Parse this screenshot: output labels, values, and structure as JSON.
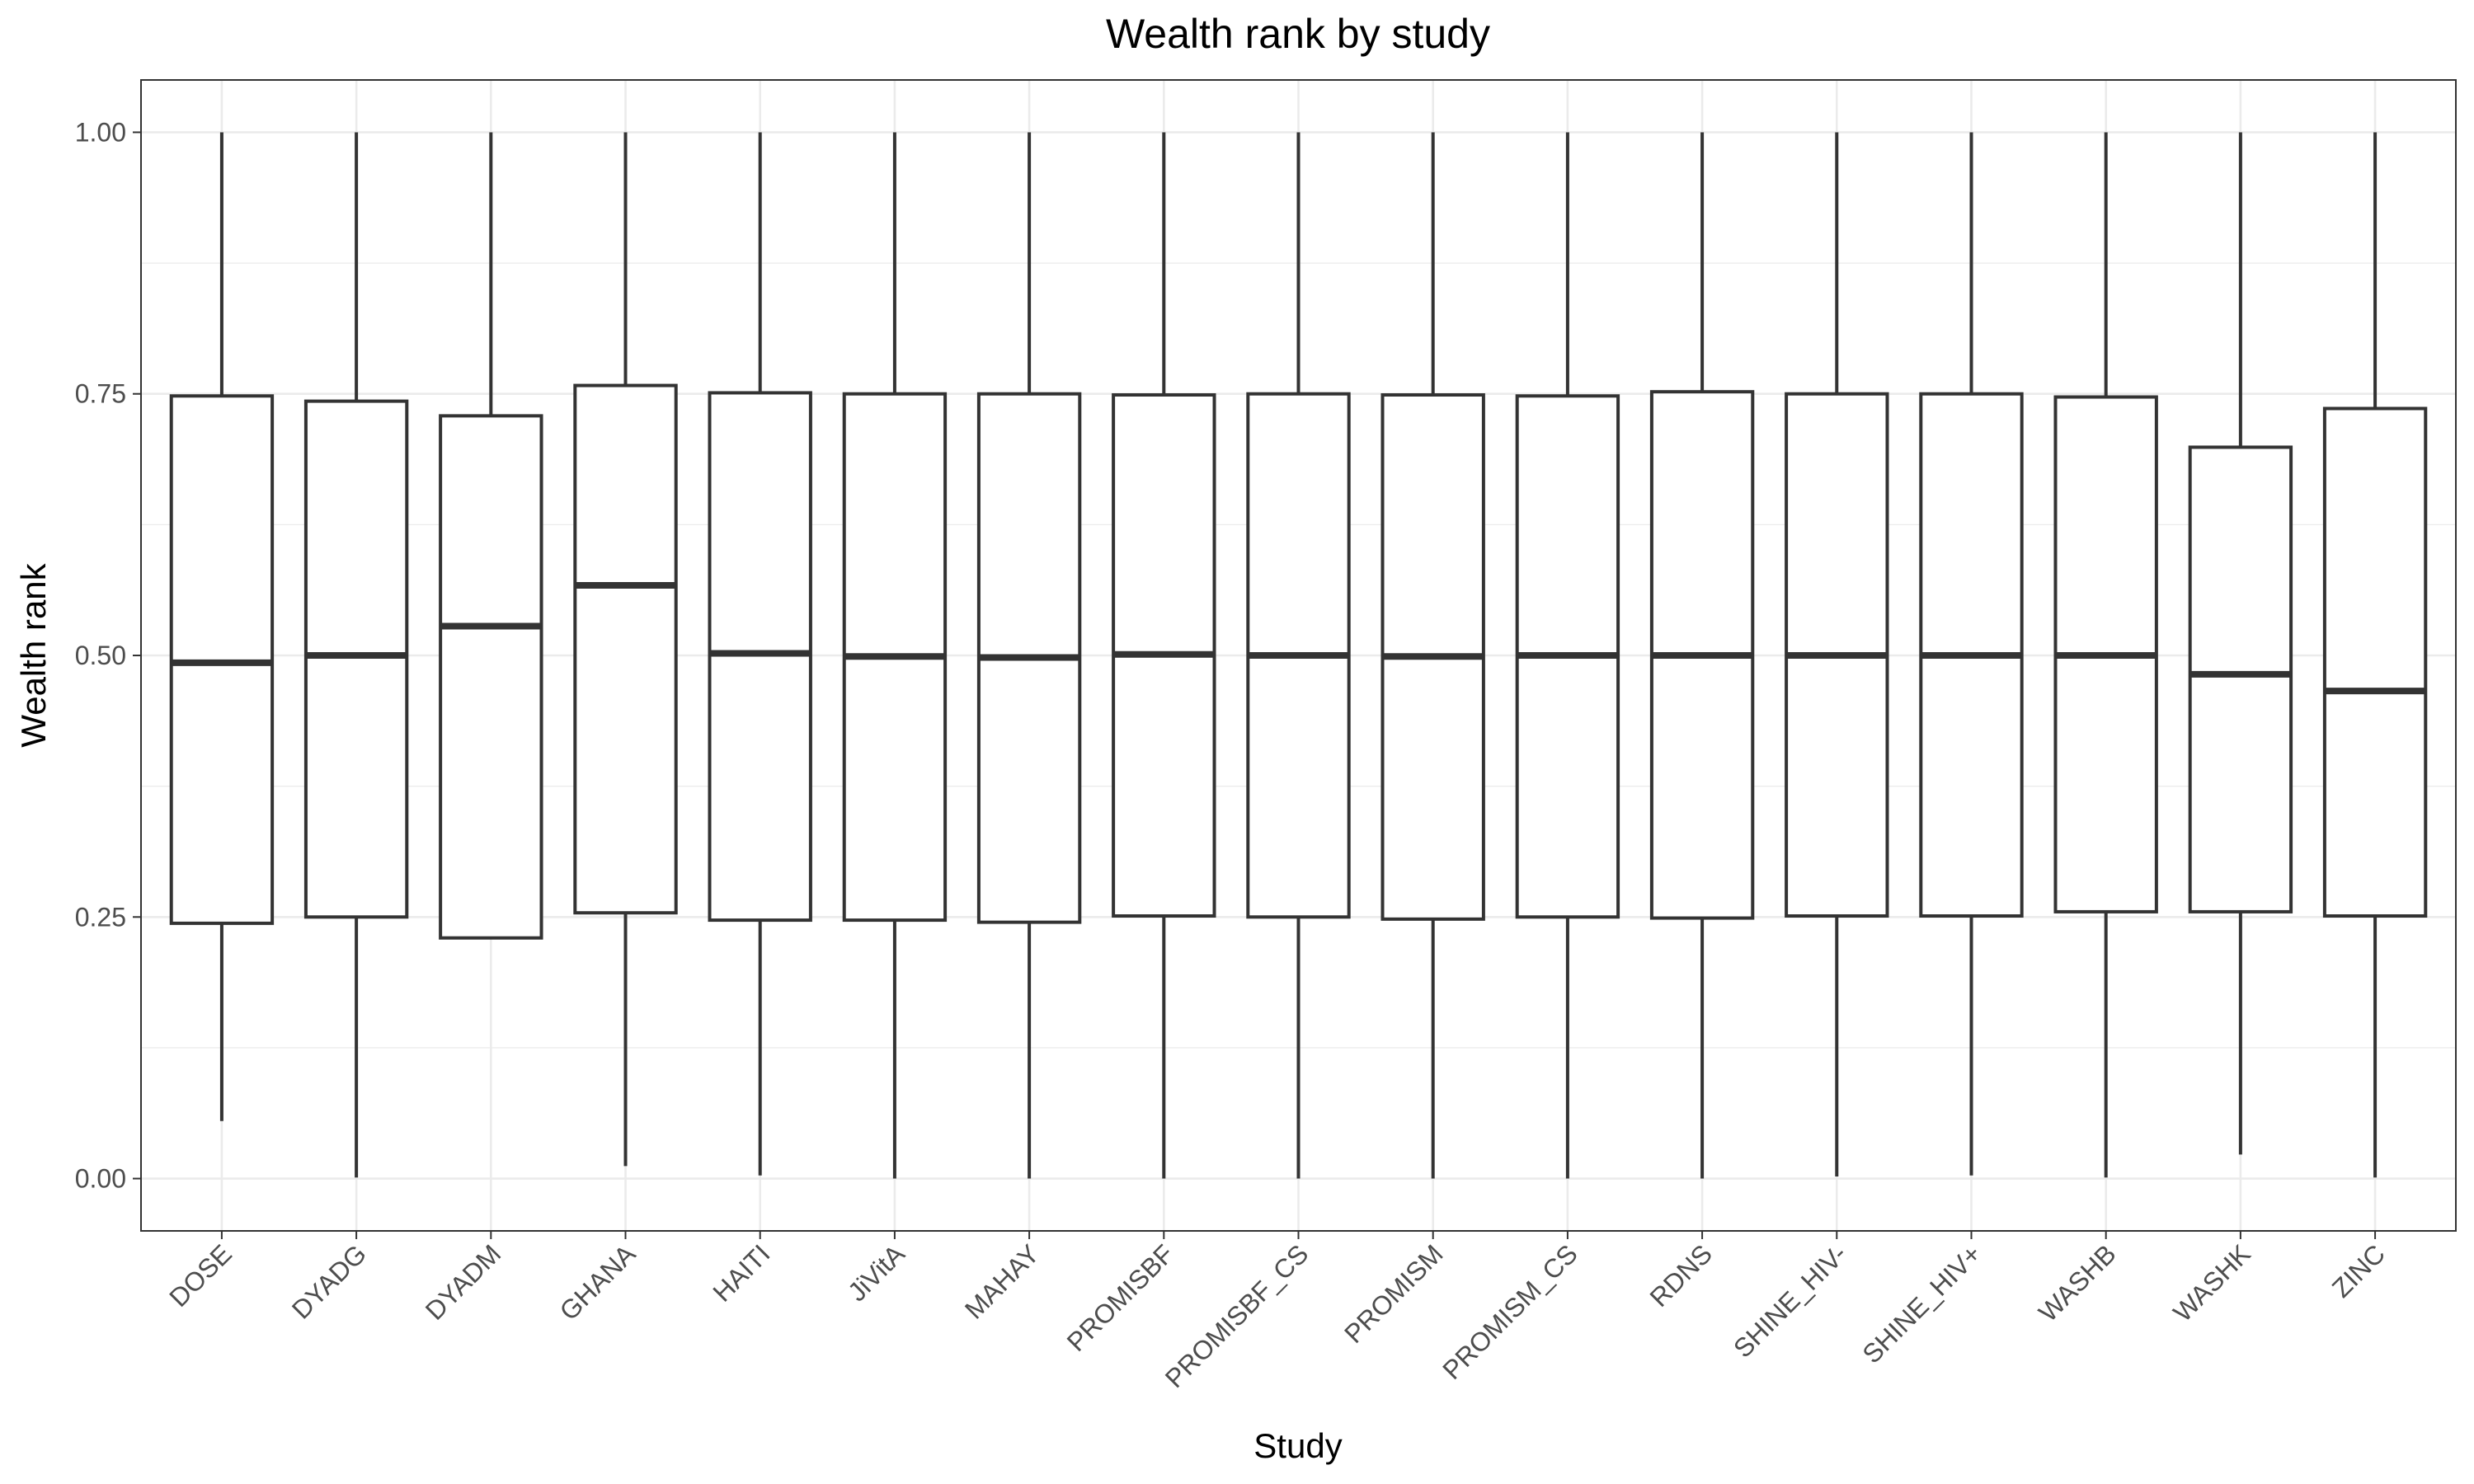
{
  "chart_data": {
    "type": "boxplot",
    "title": "Wealth rank by study",
    "xlabel": "Study",
    "ylabel": "Wealth rank",
    "ylim": [
      -0.05,
      1.05
    ],
    "yticks": [
      0.0,
      0.25,
      0.5,
      0.75,
      1.0
    ],
    "ytick_labels": [
      "0.00",
      "0.25",
      "0.50",
      "0.75",
      "1.00"
    ],
    "grid": true,
    "theme": "bw",
    "box_stroke_color": "#333333",
    "grid_color": "#ebebeb",
    "categories": [
      "DOSE",
      "DYADG",
      "DYADM",
      "GHANA",
      "HAITI",
      "JiVitA",
      "MAHAY",
      "PROMISBF",
      "PROMISBF_CS",
      "PROMISM",
      "PROMISM_CS",
      "RDNS",
      "SHINE_HIV-",
      "SHINE_HIV+",
      "WASHB",
      "WASHK",
      "ZINC"
    ],
    "boxes": [
      {
        "study": "DOSE",
        "min": 0.055,
        "q1": 0.244,
        "median": 0.493,
        "q3": 0.748,
        "max": 1.0
      },
      {
        "study": "DYADG",
        "min": 0.001,
        "q1": 0.25,
        "median": 0.5,
        "q3": 0.743,
        "max": 1.0
      },
      {
        "study": "DYADM",
        "min": 0.23,
        "q1": 0.23,
        "median": 0.528,
        "q3": 0.729,
        "max": 1.0
      },
      {
        "study": "GHANA",
        "min": 0.012,
        "q1": 0.254,
        "median": 0.567,
        "q3": 0.758,
        "max": 1.0
      },
      {
        "study": "HAITI",
        "min": 0.003,
        "q1": 0.247,
        "median": 0.502,
        "q3": 0.751,
        "max": 1.0
      },
      {
        "study": "JiVitA",
        "min": 0.0,
        "q1": 0.247,
        "median": 0.499,
        "q3": 0.75,
        "max": 1.0
      },
      {
        "study": "MAHAY",
        "min": 0.0,
        "q1": 0.245,
        "median": 0.498,
        "q3": 0.75,
        "max": 1.0
      },
      {
        "study": "PROMISBF",
        "min": 0.0,
        "q1": 0.251,
        "median": 0.501,
        "q3": 0.749,
        "max": 1.0
      },
      {
        "study": "PROMISBF_CS",
        "min": 0.0,
        "q1": 0.25,
        "median": 0.5,
        "q3": 0.75,
        "max": 1.0
      },
      {
        "study": "PROMISM",
        "min": 0.0,
        "q1": 0.248,
        "median": 0.499,
        "q3": 0.749,
        "max": 1.0
      },
      {
        "study": "PROMISM_CS",
        "min": 0.0,
        "q1": 0.25,
        "median": 0.5,
        "q3": 0.748,
        "max": 1.0
      },
      {
        "study": "RDNS",
        "min": 0.0,
        "q1": 0.249,
        "median": 0.5,
        "q3": 0.752,
        "max": 1.0
      },
      {
        "study": "SHINE_HIV-",
        "min": 0.002,
        "q1": 0.251,
        "median": 0.5,
        "q3": 0.75,
        "max": 1.0
      },
      {
        "study": "SHINE_HIV+",
        "min": 0.003,
        "q1": 0.251,
        "median": 0.5,
        "q3": 0.75,
        "max": 1.0
      },
      {
        "study": "WASHB",
        "min": 0.001,
        "q1": 0.255,
        "median": 0.5,
        "q3": 0.747,
        "max": 1.0
      },
      {
        "study": "WASHK",
        "min": 0.023,
        "q1": 0.255,
        "median": 0.482,
        "q3": 0.699,
        "max": 1.0
      },
      {
        "study": "ZINC",
        "min": 0.001,
        "q1": 0.251,
        "median": 0.466,
        "q3": 0.736,
        "max": 1.0
      }
    ]
  }
}
